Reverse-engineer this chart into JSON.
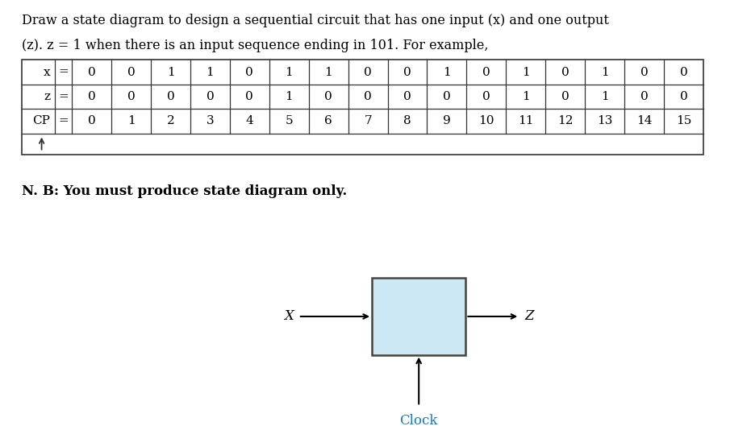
{
  "title_line1": "Draw a state diagram to design a sequential circuit that has one input (x) and one output",
  "title_line2": "(z). z = 1 when there is an input sequence ending in 101. For example,",
  "note": "N. B: You must produce state diagram only.",
  "x_row": [
    0,
    0,
    1,
    1,
    0,
    1,
    1,
    0,
    0,
    1,
    0,
    1,
    0,
    1,
    0,
    0
  ],
  "z_row": [
    0,
    0,
    0,
    0,
    0,
    1,
    0,
    0,
    0,
    0,
    0,
    1,
    0,
    1,
    0,
    0
  ],
  "cp_row": [
    0,
    1,
    2,
    3,
    4,
    5,
    6,
    7,
    8,
    9,
    10,
    11,
    12,
    13,
    14,
    15
  ],
  "row_labels": [
    "x",
    "z",
    "CP"
  ],
  "box_color": "#cce8f4",
  "box_edge_color": "#444444",
  "arrow_color": "#000000",
  "clock_label_color": "#1a7ab5",
  "text_color": "#000000",
  "background_color": "#ffffff",
  "fig_width": 9.31,
  "fig_height": 5.29,
  "dpi": 100,
  "title_fontsize": 11.5,
  "table_fontsize": 11,
  "note_fontsize": 12,
  "diagram_fontsize": 12
}
